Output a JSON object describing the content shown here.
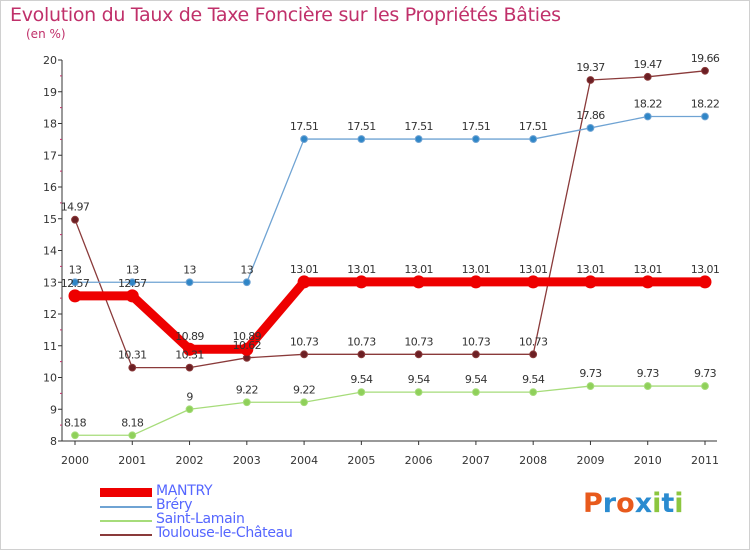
{
  "header": {
    "title": "Evolution du Taux de Taxe Foncière sur les Propriétés Bâties",
    "unit": "(en %)"
  },
  "logo": {
    "text": "Proxiti",
    "letters": [
      "P",
      "r",
      "o",
      "x",
      "i",
      "t",
      "i"
    ],
    "colors": [
      "#e85a1c",
      "#2a8bd0",
      "#e85a1c",
      "#2a8bd0",
      "#8cc63f",
      "#2a8bd0",
      "#8cc63f"
    ]
  },
  "chart_data": {
    "type": "line",
    "title": "Evolution du Taux de Taxe Foncière sur les Propriétés Bâties",
    "ylabel": "(en %)",
    "xlabel": "",
    "ylim": [
      8,
      20
    ],
    "yticks": [
      8,
      9,
      10,
      11,
      12,
      13,
      14,
      15,
      16,
      17,
      18,
      19,
      20
    ],
    "categories": [
      "2000",
      "2001",
      "2002",
      "2003",
      "2004",
      "2005",
      "2006",
      "2007",
      "2008",
      "2009",
      "2010",
      "2011"
    ],
    "grid": false,
    "legend_position": "bottom-left",
    "series": [
      {
        "name": "MANTRY",
        "color": "#ee0000",
        "emphasis": true,
        "values": [
          12.57,
          12.57,
          10.89,
          10.89,
          13.01,
          13.01,
          13.01,
          13.01,
          13.01,
          13.01,
          13.01,
          13.01
        ],
        "labels": [
          "12.57",
          "12.57",
          "10.89",
          "10.89",
          "13.01",
          "13.01",
          "13.01",
          "13.01",
          "13.01",
          "13.01",
          "13.01",
          "13.01"
        ]
      },
      {
        "name": "Bréry",
        "color": "#6fa3d3",
        "marker": "#2f86c7",
        "values": [
          13,
          13,
          13,
          13,
          17.51,
          17.51,
          17.51,
          17.51,
          17.51,
          17.86,
          18.22,
          18.22
        ],
        "labels": [
          "13",
          "13",
          "13",
          "13",
          "17.51",
          "17.51",
          "17.51",
          "17.51",
          "17.51",
          "17.86",
          "18.22",
          "18.22"
        ]
      },
      {
        "name": "Saint-Lamain",
        "color": "#a6dc7a",
        "marker": "#8fd05a",
        "values": [
          8.18,
          8.18,
          9,
          9.22,
          9.22,
          9.54,
          9.54,
          9.54,
          9.54,
          9.73,
          9.73,
          9.73
        ],
        "labels": [
          "8.18",
          "8.18",
          "9",
          "9.22",
          "9.22",
          "9.54",
          "9.54",
          "9.54",
          "9.54",
          "9.73",
          "9.73",
          "9.73"
        ]
      },
      {
        "name": "Toulouse-le-Château",
        "color": "#8a3a3a",
        "marker": "#6b1f24",
        "values": [
          14.97,
          10.31,
          10.31,
          10.62,
          10.73,
          10.73,
          10.73,
          10.73,
          10.73,
          19.37,
          19.47,
          19.66
        ],
        "labels": [
          "14.97",
          "10.31",
          "10.31",
          "10.62",
          "10.73",
          "10.73",
          "10.73",
          "10.73",
          "10.73",
          "19.37",
          "19.47",
          "19.66"
        ]
      }
    ]
  }
}
